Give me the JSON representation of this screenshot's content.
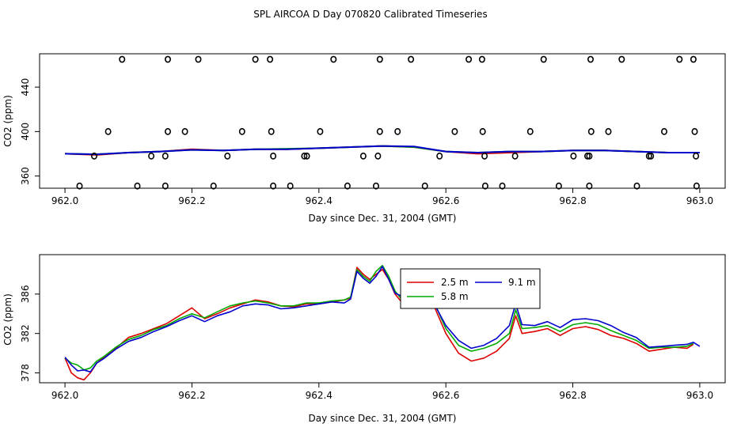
{
  "title": "SPL AIRCOA D  Day 070820  Calibrated Timeseries",
  "colors": {
    "red": "#dd0000",
    "green": "#00aa00",
    "blue": "#0000cc",
    "black": "#000000"
  },
  "chart_data": [
    {
      "type": "line",
      "xlabel": "Day since Dec. 31, 2004 (GMT)",
      "ylabel": "CO2 (ppm)",
      "xlim": [
        961.96,
        963.04
      ],
      "ylim": [
        349,
        470
      ],
      "xticks": [
        962.0,
        962.2,
        962.4,
        962.6,
        962.8,
        963.0
      ],
      "xtick_labels": [
        "962.0",
        "962.2",
        "962.4",
        "962.6",
        "962.8",
        "963.0"
      ],
      "yticks": [
        360,
        400,
        440
      ],
      "ytick_labels": [
        "360",
        "400",
        "440"
      ],
      "series": [
        {
          "color": "red",
          "x": [
            962.0,
            962.05,
            962.1,
            962.15,
            962.2,
            962.25,
            962.3,
            962.35,
            962.4,
            962.45,
            962.5,
            962.55,
            962.6,
            962.65,
            962.7,
            962.75,
            962.8,
            962.85,
            962.9,
            962.95,
            963.0
          ],
          "y": [
            380,
            379,
            381,
            382,
            384,
            383,
            384,
            384,
            385,
            386,
            387,
            386,
            382,
            380,
            381,
            382,
            383,
            383,
            382,
            381,
            381
          ]
        },
        {
          "color": "green",
          "x": [
            962.0,
            962.05,
            962.1,
            962.15,
            962.2,
            962.25,
            962.3,
            962.35,
            962.4,
            962.45,
            962.5,
            962.55,
            962.6,
            962.65,
            962.7,
            962.75,
            962.8,
            962.85,
            962.9,
            962.95,
            963.0
          ],
          "y": [
            380,
            379.5,
            381,
            382,
            383.5,
            383,
            384,
            384.5,
            385,
            386,
            387,
            386,
            382,
            381,
            382,
            382,
            383,
            383,
            382,
            381,
            381
          ]
        },
        {
          "color": "blue",
          "x": [
            962.0,
            962.05,
            962.1,
            962.15,
            962.2,
            962.25,
            962.3,
            962.35,
            962.4,
            962.45,
            962.5,
            962.55,
            962.6,
            962.65,
            962.7,
            962.75,
            962.8,
            962.85,
            962.9,
            962.95,
            963.0
          ],
          "y": [
            380,
            379.5,
            381,
            382,
            383.5,
            383,
            384,
            384,
            385,
            386,
            387,
            386.5,
            382,
            381,
            382,
            382,
            383,
            383,
            382,
            381,
            381
          ]
        }
      ],
      "points": [
        {
          "x": 962.09,
          "y": 465
        },
        {
          "x": 962.162,
          "y": 465
        },
        {
          "x": 962.21,
          "y": 465
        },
        {
          "x": 962.3,
          "y": 465
        },
        {
          "x": 962.323,
          "y": 465
        },
        {
          "x": 962.423,
          "y": 465
        },
        {
          "x": 962.496,
          "y": 465
        },
        {
          "x": 962.545,
          "y": 465
        },
        {
          "x": 962.636,
          "y": 465
        },
        {
          "x": 962.657,
          "y": 465
        },
        {
          "x": 962.754,
          "y": 465
        },
        {
          "x": 962.828,
          "y": 465
        },
        {
          "x": 962.877,
          "y": 465
        },
        {
          "x": 962.968,
          "y": 465
        },
        {
          "x": 962.99,
          "y": 465
        },
        {
          "x": 962.068,
          "y": 400
        },
        {
          "x": 962.162,
          "y": 400
        },
        {
          "x": 962.189,
          "y": 400
        },
        {
          "x": 962.279,
          "y": 400
        },
        {
          "x": 962.325,
          "y": 400
        },
        {
          "x": 962.402,
          "y": 400
        },
        {
          "x": 962.496,
          "y": 400
        },
        {
          "x": 962.524,
          "y": 400
        },
        {
          "x": 962.614,
          "y": 400
        },
        {
          "x": 962.658,
          "y": 400
        },
        {
          "x": 962.733,
          "y": 400
        },
        {
          "x": 962.829,
          "y": 400
        },
        {
          "x": 962.856,
          "y": 400
        },
        {
          "x": 962.944,
          "y": 400
        },
        {
          "x": 962.992,
          "y": 400
        },
        {
          "x": 962.046,
          "y": 378
        },
        {
          "x": 962.136,
          "y": 378
        },
        {
          "x": 962.158,
          "y": 378
        },
        {
          "x": 962.256,
          "y": 378
        },
        {
          "x": 962.328,
          "y": 378
        },
        {
          "x": 962.377,
          "y": 378
        },
        {
          "x": 962.381,
          "y": 378
        },
        {
          "x": 962.47,
          "y": 378
        },
        {
          "x": 962.493,
          "y": 378
        },
        {
          "x": 962.59,
          "y": 378
        },
        {
          "x": 962.661,
          "y": 378
        },
        {
          "x": 962.709,
          "y": 378
        },
        {
          "x": 962.801,
          "y": 378
        },
        {
          "x": 962.823,
          "y": 378
        },
        {
          "x": 962.826,
          "y": 378
        },
        {
          "x": 962.92,
          "y": 378
        },
        {
          "x": 962.923,
          "y": 378
        },
        {
          "x": 962.994,
          "y": 378
        },
        {
          "x": 962.023,
          "y": 351
        },
        {
          "x": 962.114,
          "y": 351
        },
        {
          "x": 962.158,
          "y": 351
        },
        {
          "x": 962.234,
          "y": 351
        },
        {
          "x": 962.328,
          "y": 351
        },
        {
          "x": 962.355,
          "y": 351
        },
        {
          "x": 962.445,
          "y": 351
        },
        {
          "x": 962.49,
          "y": 351
        },
        {
          "x": 962.567,
          "y": 351
        },
        {
          "x": 962.662,
          "y": 351
        },
        {
          "x": 962.689,
          "y": 351
        },
        {
          "x": 962.778,
          "y": 351
        },
        {
          "x": 962.826,
          "y": 351
        },
        {
          "x": 962.901,
          "y": 351
        },
        {
          "x": 962.995,
          "y": 351
        }
      ]
    },
    {
      "type": "line",
      "xlabel": "Day since Dec. 31, 2004 (GMT)",
      "ylabel": "CO2 (ppm)",
      "xlim": [
        961.96,
        963.04
      ],
      "ylim": [
        377,
        390
      ],
      "xticks": [
        962.0,
        962.2,
        962.4,
        962.6,
        962.8,
        963.0
      ],
      "xtick_labels": [
        "962.0",
        "962.2",
        "962.4",
        "962.6",
        "962.8",
        "963.0"
      ],
      "yticks": [
        378,
        382,
        386
      ],
      "ytick_labels": [
        "378",
        "382",
        "386"
      ],
      "legend": {
        "position": "top-center",
        "entries": [
          {
            "label": "2.5 m",
            "color": "red"
          },
          {
            "label": "5.8 m",
            "color": "green"
          },
          {
            "label": "9.1 m",
            "color": "blue"
          }
        ]
      },
      "series": [
        {
          "name": "2.5 m",
          "color": "red",
          "x": [
            962.0,
            962.01,
            962.02,
            962.03,
            962.04,
            962.05,
            962.06,
            962.08,
            962.1,
            962.12,
            962.14,
            962.16,
            962.18,
            962.2,
            962.22,
            962.24,
            962.26,
            962.28,
            962.3,
            962.32,
            962.34,
            962.36,
            962.38,
            962.4,
            962.42,
            962.44,
            962.45,
            962.46,
            962.47,
            962.48,
            962.49,
            962.5,
            962.51,
            962.52,
            962.53,
            962.54,
            962.55,
            962.56,
            962.57,
            962.58,
            962.6,
            962.62,
            962.64,
            962.66,
            962.68,
            962.7,
            962.71,
            962.72,
            962.74,
            962.76,
            962.78,
            962.8,
            962.82,
            962.84,
            962.86,
            962.88,
            962.9,
            962.92,
            962.94,
            962.96,
            962.98,
            962.99
          ],
          "y": [
            379.5,
            378,
            377.5,
            377.3,
            378,
            379,
            379.5,
            380.5,
            381.6,
            382,
            382.5,
            383,
            383.8,
            384.6,
            383.5,
            384,
            384.6,
            385,
            385.4,
            385.2,
            384.8,
            384.7,
            385,
            385,
            385.2,
            385.4,
            385.6,
            388.7,
            388,
            387.5,
            388,
            388.5,
            387.5,
            386,
            385.2,
            387.8,
            387,
            387.5,
            386.8,
            385,
            382,
            380,
            379.2,
            379.5,
            380.2,
            381.5,
            383.8,
            382,
            382.2,
            382.5,
            381.8,
            382.5,
            382.7,
            382.4,
            381.8,
            381.5,
            381,
            380.2,
            380.4,
            380.6,
            380.5,
            380.9
          ]
        },
        {
          "name": "5.8 m",
          "color": "green",
          "x": [
            962.0,
            962.01,
            962.02,
            962.03,
            962.04,
            962.05,
            962.06,
            962.08,
            962.1,
            962.12,
            962.14,
            962.16,
            962.18,
            962.2,
            962.22,
            962.24,
            962.26,
            962.28,
            962.3,
            962.32,
            962.34,
            962.36,
            962.38,
            962.4,
            962.42,
            962.44,
            962.45,
            962.46,
            962.47,
            962.48,
            962.49,
            962.5,
            962.51,
            962.52,
            962.53,
            962.54,
            962.55,
            962.56,
            962.57,
            962.58,
            962.6,
            962.62,
            962.64,
            962.66,
            962.68,
            962.7,
            962.71,
            962.72,
            962.74,
            962.76,
            962.78,
            962.8,
            962.82,
            962.84,
            962.86,
            962.88,
            962.9,
            962.92,
            962.94,
            962.96,
            962.98,
            962.99
          ],
          "y": [
            379.5,
            379,
            378.8,
            378.3,
            378.5,
            379.2,
            379.6,
            380.6,
            381.4,
            381.8,
            382.4,
            382.8,
            383.5,
            384,
            383.6,
            384.2,
            384.8,
            385.1,
            385.3,
            385.1,
            384.8,
            384.8,
            385.1,
            385.1,
            385.3,
            385.4,
            385.7,
            388.5,
            387.8,
            387.3,
            388.3,
            388.9,
            387.8,
            386.3,
            385.5,
            387.5,
            387.2,
            387.3,
            387,
            385.4,
            382.5,
            380.8,
            380.2,
            380.5,
            381,
            382,
            384.4,
            382.5,
            382.6,
            382.8,
            382.2,
            382.9,
            383.1,
            382.9,
            382.3,
            381.8,
            381.3,
            380.5,
            380.6,
            380.6,
            380.7,
            381
          ]
        },
        {
          "name": "9.1 m",
          "color": "blue",
          "x": [
            962.0,
            962.01,
            962.02,
            962.03,
            962.04,
            962.05,
            962.06,
            962.08,
            962.1,
            962.12,
            962.14,
            962.16,
            962.18,
            962.2,
            962.22,
            962.24,
            962.26,
            962.28,
            962.3,
            962.32,
            962.34,
            962.36,
            962.38,
            962.4,
            962.42,
            962.44,
            962.45,
            962.46,
            962.47,
            962.48,
            962.49,
            962.5,
            962.51,
            962.52,
            962.53,
            962.54,
            962.55,
            962.56,
            962.57,
            962.58,
            962.6,
            962.62,
            962.64,
            962.66,
            962.68,
            962.7,
            962.71,
            962.72,
            962.74,
            962.76,
            962.78,
            962.8,
            962.82,
            962.84,
            962.86,
            962.88,
            962.9,
            962.92,
            962.94,
            962.96,
            962.98,
            962.99,
            963.0
          ],
          "y": [
            379.6,
            378.8,
            378.2,
            378.3,
            378.1,
            379,
            379.4,
            380.4,
            381.2,
            381.6,
            382.2,
            382.7,
            383.3,
            383.8,
            383.2,
            383.8,
            384.2,
            384.8,
            385,
            384.9,
            384.5,
            384.6,
            384.8,
            385,
            385.2,
            385.1,
            385.5,
            388.3,
            387.6,
            387.1,
            387.8,
            388.8,
            387.5,
            386.1,
            385.8,
            388.3,
            386.8,
            387.1,
            386.5,
            385.2,
            382.8,
            381.3,
            380.5,
            380.8,
            381.5,
            382.8,
            385,
            382.9,
            382.8,
            383.2,
            382.6,
            383.4,
            383.5,
            383.3,
            382.8,
            382.1,
            381.6,
            380.6,
            380.7,
            380.8,
            380.9,
            381.1,
            380.7
          ]
        }
      ]
    }
  ]
}
